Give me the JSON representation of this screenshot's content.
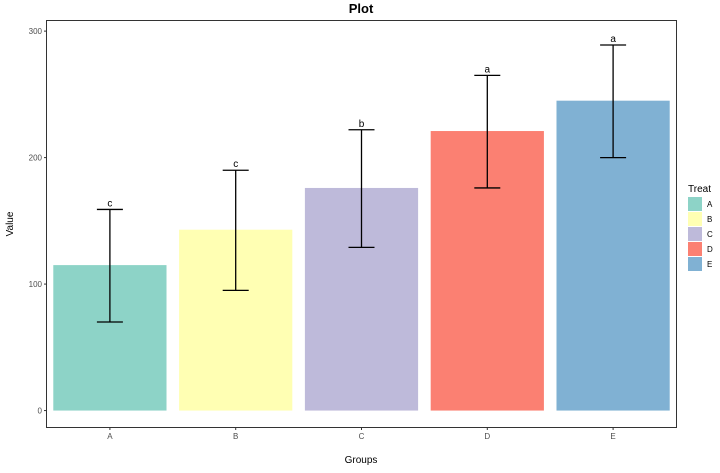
{
  "chart_data": {
    "type": "bar",
    "title": "Plot",
    "xlabel": "Groups",
    "ylabel": "Value",
    "categories": [
      "A",
      "B",
      "C",
      "D",
      "E"
    ],
    "values": [
      115,
      143,
      176,
      221,
      245
    ],
    "error_low": [
      70,
      95,
      129,
      176,
      200
    ],
    "error_high": [
      159,
      190,
      222,
      265,
      289
    ],
    "significance": [
      "c",
      "c",
      "b",
      "a",
      "a"
    ],
    "ylim": [
      -13,
      308
    ],
    "yticks": [
      0,
      100,
      200,
      300
    ],
    "grid": false,
    "legend": {
      "title": "Treat",
      "position": "right",
      "items": [
        "A",
        "B",
        "C",
        "D",
        "E"
      ]
    },
    "colors": [
      "#8dd3c7",
      "#ffffb3",
      "#bebada",
      "#fb8072",
      "#80b1d3"
    ]
  }
}
